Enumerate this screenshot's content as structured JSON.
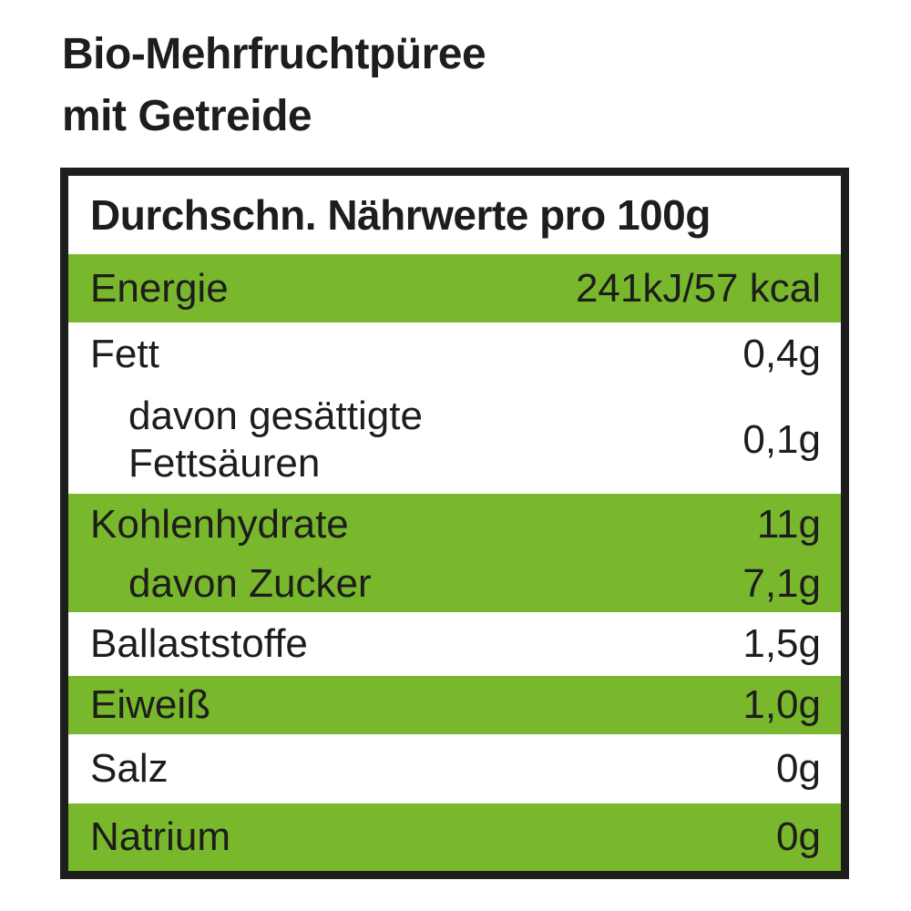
{
  "product": {
    "title": "Bio-Mehrfruchtpüree\nmit Getreide"
  },
  "nutrition_table": {
    "header": "Durchschn. Nährwerte pro 100g",
    "rows": [
      {
        "label": "Energie",
        "value": "241kJ/57 kcal",
        "background": "green",
        "indented": false
      },
      {
        "label": "Fett",
        "value": "0,4g",
        "background": "white",
        "indented": false
      },
      {
        "label": "davon gesättigte\nFettsäuren",
        "value": "0,1g",
        "background": "white",
        "indented": true
      },
      {
        "label": "Kohlenhydrate",
        "value": "11g",
        "background": "green",
        "indented": false
      },
      {
        "label": "davon Zucker",
        "value": "7,1g",
        "background": "green",
        "indented": true
      },
      {
        "label": "Ballaststoffe",
        "value": "1,5g",
        "background": "white",
        "indented": false
      },
      {
        "label": "Eiweiß",
        "value": "1,0g",
        "background": "green",
        "indented": false
      },
      {
        "label": "Salz",
        "value": "0g",
        "background": "white",
        "indented": false
      },
      {
        "label": "Natrium",
        "value": "0g",
        "background": "green",
        "indented": false
      }
    ]
  },
  "colors": {
    "row_green": "#79b82c",
    "text_black": "#1d1d1b",
    "border_black": "#1d1d1b",
    "background_white": "#ffffff"
  }
}
